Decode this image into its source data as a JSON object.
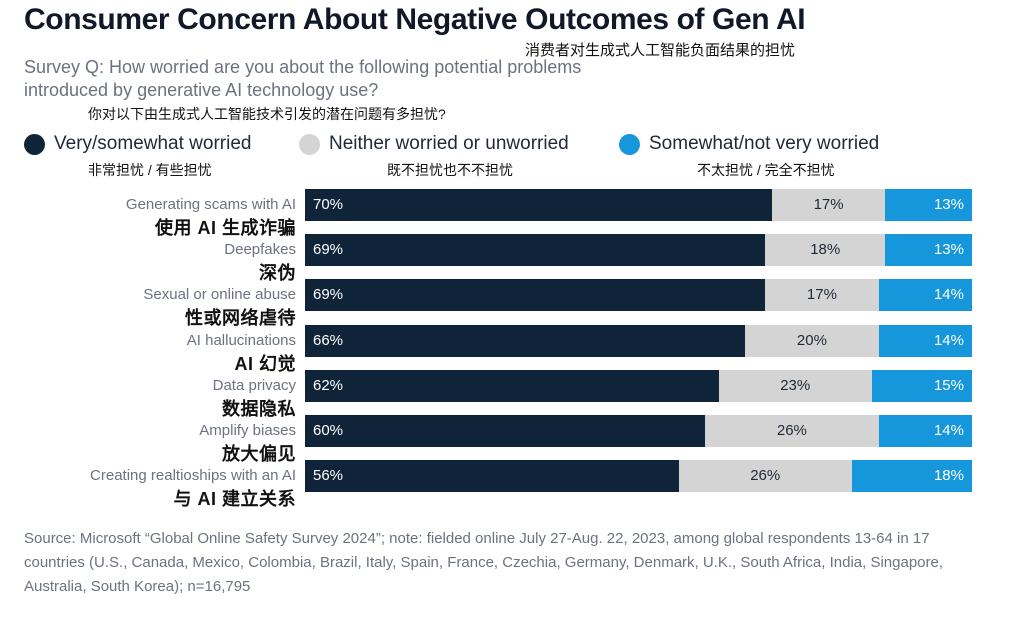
{
  "title": "Consumer Concern About Negative Outcomes of Gen AI",
  "title_cn": "消费者对生成式人工智能负面结果的担忧",
  "survey_question": "Survey Q: How worried are you about the following potential problems introduced by generative AI technology use?",
  "survey_question_cn": "你对以下由生成式人工智能技术引发的潜在问题有多担忧?",
  "source": "Source: Microsoft “Global Online Safety Survey 2024”; note: fielded online July 27-Aug. 22, 2023, among global respondents 13-64 in 17 countries (U.S., Canada, Mexico, Colombia, Brazil, Italy, Spain, France, Czechia, Germany, Denmark, U.K., South Africa, India, Singapore, Australia, South Korea); n=16,795",
  "colors": {
    "worried": "#0f2439",
    "neutral": "#d4d4d4",
    "not_worried": "#1697db"
  },
  "chart_data": {
    "type": "bar",
    "orientation": "horizontal",
    "stacked": true,
    "categories": [
      "Generating scams with AI",
      "Deepfakes",
      "Sexual or online abuse",
      "AI hallucinations",
      "Data privacy",
      "Amplify biases",
      "Creating realtioships with an AI"
    ],
    "categories_cn": [
      "使用 AI 生成诈骗",
      "深伪",
      "性或网络虐待",
      "AI 幻觉",
      "数据隐私",
      "放大偏见",
      "与 AI 建立关系"
    ],
    "series": [
      {
        "name": "Very/somewhat worried",
        "name_cn": "非常担忧 / 有些担忧",
        "color": "#0f2439",
        "values": [
          70,
          69,
          69,
          66,
          62,
          60,
          56
        ]
      },
      {
        "name": "Neither worried or unworried",
        "name_cn": "既不担忧也不不担忧",
        "color": "#d4d4d4",
        "values": [
          17,
          18,
          17,
          20,
          23,
          26,
          26
        ]
      },
      {
        "name": "Somewhat/not very worried",
        "name_cn": "不太担忧 / 完全不担忧",
        "color": "#1697db",
        "values": [
          13,
          13,
          14,
          14,
          15,
          14,
          18
        ]
      }
    ],
    "legend_position": "top",
    "grid": false,
    "value_suffix": "%"
  }
}
